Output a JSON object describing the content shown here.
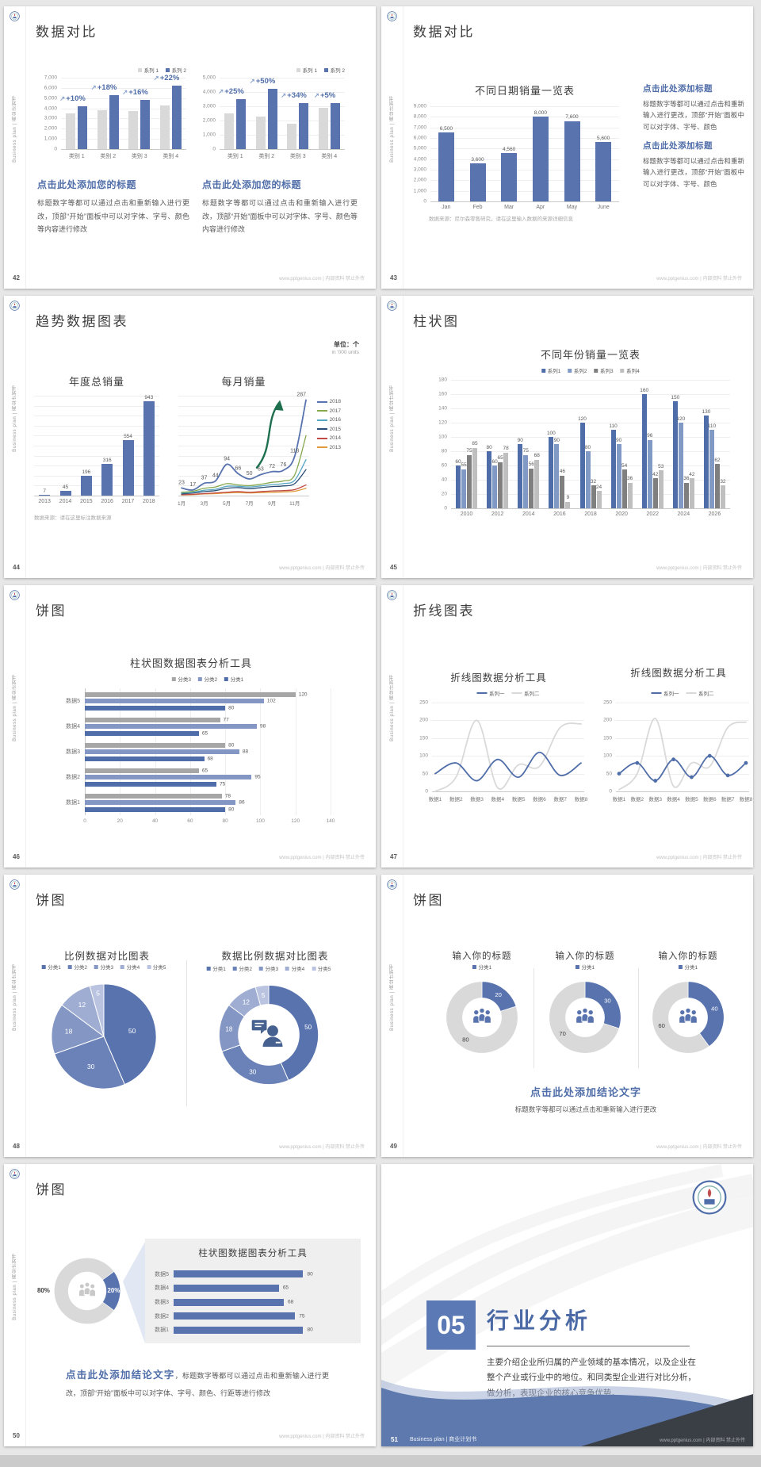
{
  "page": {
    "footer": "www.pptgenius.com | 内部资料 禁止外传",
    "sidebar_text": "Business plan | 商业计划书",
    "accent": "#4f6da8"
  },
  "slides": {
    "s42": {
      "number": "42",
      "title": "数据对比",
      "block1_heading": "点击此处添加您的标题",
      "block1_body": "标题数字等都可以通过点击和重新输入进行更改，顶部“开始”面板中可以对字体、字号、颜色等内容进行修改",
      "block2_heading": "点击此处添加您的标题",
      "block2_body": "标题数字等都可以通过点击和重新输入进行更改，顶部“开始”面板中可以对字体、字号、颜色等内容进行修改"
    },
    "s43": {
      "number": "43",
      "title": "数据对比",
      "chart_title": "不同日期销量一览表",
      "note": "数据来源：尼尔森零售研究，请在这里输入数据的来源详细信息",
      "block1_heading": "点击此处添加标题",
      "block1_body": "标题数字等都可以通过点击和重新输入进行更改，顶部“开始”面板中可以对字体、字号、颜色",
      "block2_heading": "点击此处添加标题",
      "block2_body": "标题数字等都可以通过点击和重新输入进行更改，顶部“开始”面板中可以对字体、字号、颜色"
    },
    "s44": {
      "number": "44",
      "title": "趋势数据图表",
      "left_title": "年度总销量",
      "right_title": "每月销量",
      "unit_cn": "单位：个",
      "unit_en": "in '000 units",
      "note": "数据来源：请在这里标注数据来源"
    },
    "s45": {
      "number": "45",
      "title": "柱状图",
      "chart_title": "不同年份销量一览表"
    },
    "s46": {
      "number": "46",
      "title": "饼图",
      "chart_title": "柱状图数据图表分析工具"
    },
    "s47": {
      "number": "47",
      "title": "折线图表",
      "chart1_title": "折线图数据分析工具",
      "chart2_title": "折线图数据分析工具"
    },
    "s48": {
      "number": "48",
      "title": "饼图",
      "chart1_title": "比例数据对比图表",
      "chart2_title": "数据比例数据对比图表"
    },
    "s49": {
      "number": "49",
      "title": "饼图",
      "t1": "输入你的标题",
      "t2": "输入你的标题",
      "t3": "输入你的标题",
      "conclusion_heading": "点击此处添加结论文字",
      "conclusion_body": "标题数字等都可以通过点击和重新输入进行更改"
    },
    "s50": {
      "number": "50",
      "title": "饼图",
      "panel_title": "柱状图数据图表分析工具",
      "conclusion_heading": "点击此处添加结论文字",
      "conclusion_body": "，标题数字等都可以通过点击和重新输入进行更改，顶部“开始”面板中可以对字体、字号、颜色、行距等进行修改"
    },
    "s51": {
      "number": "51",
      "section_number": "05",
      "section_title": "行业分析",
      "section_body": "主要介绍企业所归属的产业领域的基本情况，以及企业在整个产业或行业中的地位。和同类型企业进行对比分析，做分析，表现企业的核心竞争优势。",
      "bottom_text": "Business plan | 商业计划书"
    }
  },
  "chart_data": {
    "s42_left": {
      "type": "bar",
      "ymax": 7000,
      "yticks": [
        "0",
        "1,000",
        "2,000",
        "3,000",
        "4,000",
        "5,000",
        "6,000",
        "7,000"
      ],
      "categories": [
        "类别 1",
        "类别 2",
        "类别 3",
        "类别 4"
      ],
      "series": [
        {
          "name": "系列 1",
          "color": "#d9d9d9",
          "values": [
            3500,
            3800,
            3700,
            4300
          ]
        },
        {
          "name": "系列 2",
          "color": "#5873ae",
          "values": [
            4200,
            5300,
            4800,
            6200
          ]
        }
      ],
      "annotations": [
        "+10%",
        "+18%",
        "+16%",
        "+22%"
      ],
      "legend": true
    },
    "s42_right": {
      "type": "bar",
      "ymax": 5000,
      "yticks": [
        "0",
        "1,000",
        "2,000",
        "3,000",
        "4,000",
        "5,000"
      ],
      "categories": [
        "类别 1",
        "类别 2",
        "类别 3",
        "类别 4"
      ],
      "series": [
        {
          "name": "系列 1",
          "color": "#d9d9d9",
          "values": [
            2500,
            2300,
            1800,
            2900
          ]
        },
        {
          "name": "系列 2",
          "color": "#5873ae",
          "values": [
            3500,
            4200,
            3200,
            3200
          ]
        }
      ],
      "annotations": [
        "+25%",
        "+50%",
        "+34%",
        "+5%"
      ],
      "legend": true
    },
    "s43": {
      "type": "bar",
      "ymax": 9000,
      "yticks": [
        "0",
        "1,000",
        "2,000",
        "3,000",
        "4,000",
        "5,000",
        "6,000",
        "7,000",
        "8,000",
        "9,000"
      ],
      "categories": [
        "Jan",
        "Feb",
        "Mar",
        "Apr",
        "May",
        "June"
      ],
      "series": [
        {
          "name": "销量",
          "color": "#5873ae",
          "values": [
            6500,
            3600,
            4560,
            8000,
            7600,
            5600
          ],
          "labels": [
            "6,500",
            "3,600",
            "4,560",
            "8,000",
            "7,600",
            "5,600"
          ]
        }
      ]
    },
    "s44_bar": {
      "type": "bar",
      "ymax": 1000,
      "grid": 10,
      "categories": [
        "2013",
        "2014",
        "2015",
        "2016",
        "2017",
        "2018"
      ],
      "series": [
        {
          "name": "年度总销量",
          "color": "#5873ae",
          "values": [
            7,
            45,
            196,
            316,
            554,
            943
          ],
          "labels": [
            "7",
            "45",
            "196",
            "316",
            "554",
            "943"
          ]
        }
      ]
    },
    "s44_line": {
      "type": "line",
      "ymax": 300,
      "grid": 10,
      "categories": [
        "1月",
        "2月",
        "3月",
        "4月",
        "5月",
        "6月",
        "7月",
        "8月",
        "9月",
        "10月",
        "11月",
        "12月"
      ],
      "xshow": [
        "1月",
        "3月",
        "5月",
        "7月",
        "9月",
        "11月"
      ],
      "series": [
        {
          "name": "2018",
          "color": "#5873ae",
          "width": 1.8,
          "values": [
            23,
            17,
            37,
            44,
            94,
            66,
            50,
            63,
            72,
            76,
            118,
            287
          ],
          "labels": [
            "23",
            "17",
            "37",
            "44",
            "94",
            "66",
            "50",
            "63",
            "72",
            "76",
            "118",
            "287"
          ]
        },
        {
          "name": "2017",
          "color": "#86a84f",
          "values": [
            10,
            13,
            22,
            26,
            36,
            32,
            30,
            34,
            40,
            44,
            62,
            180
          ]
        },
        {
          "name": "2016",
          "color": "#56a7c4",
          "values": [
            8,
            10,
            16,
            19,
            28,
            28,
            26,
            29,
            33,
            36,
            46,
            108
          ]
        },
        {
          "name": "2015",
          "color": "#2c4d75",
          "values": [
            5,
            8,
            12,
            15,
            22,
            24,
            21,
            24,
            27,
            29,
            36,
            78
          ]
        },
        {
          "name": "2014",
          "color": "#bf4b44",
          "values": [
            3,
            4,
            6,
            8,
            10,
            12,
            10,
            12,
            14,
            15,
            18,
            32
          ]
        },
        {
          "name": "2013",
          "color": "#e09a3c",
          "values": [
            2,
            3,
            5,
            6,
            8,
            9,
            8,
            9,
            10,
            11,
            13,
            22
          ]
        }
      ],
      "legend_side": true,
      "arrow": true
    },
    "s45": {
      "type": "bar",
      "ymax": 180,
      "yticks": [
        "0",
        "20",
        "40",
        "60",
        "80",
        "100",
        "120",
        "140",
        "160",
        "180"
      ],
      "categories": [
        "2010",
        "2012",
        "2014",
        "2016",
        "2018",
        "2020",
        "2022",
        "2024",
        "2026"
      ],
      "show_values": true,
      "series": [
        {
          "name": "系列1",
          "color": "#4f6da8",
          "values": [
            60,
            80,
            90,
            100,
            120,
            110,
            160,
            150,
            130
          ]
        },
        {
          "name": "系列2",
          "color": "#8199c5",
          "values": [
            55,
            60,
            75,
            90,
            80,
            90,
            96,
            120,
            110
          ]
        },
        {
          "name": "系列3",
          "color": "#7f7f7f",
          "values": [
            75,
            65,
            56,
            46,
            32,
            54,
            42,
            36,
            62
          ]
        },
        {
          "name": "系列4",
          "color": "#bfbfbf",
          "values": [
            85,
            78,
            68,
            9,
            24,
            36,
            53,
            42,
            32
          ]
        }
      ],
      "legend": true
    },
    "s46": {
      "type": "hgroup",
      "xmax": 140,
      "xticks": [
        "0",
        "20",
        "40",
        "60",
        "80",
        "100",
        "120",
        "140"
      ],
      "categories": [
        "数据5",
        "数据4",
        "数据3",
        "数据2",
        "数据1"
      ],
      "series": [
        {
          "name": "分类3",
          "color": "#a6a6a6",
          "values": [
            120,
            77,
            80,
            65,
            78
          ]
        },
        {
          "name": "分类2",
          "color": "#8496c4",
          "values": [
            102,
            98,
            88,
            95,
            86
          ]
        },
        {
          "name": "分类1",
          "color": "#4f6da8",
          "values": [
            80,
            65,
            68,
            75,
            80
          ]
        }
      ],
      "legend": true
    },
    "s47_1": {
      "type": "line",
      "ymax": 250,
      "yticks": [
        "0",
        "50",
        "100",
        "150",
        "200",
        "250"
      ],
      "categories": [
        "数据1",
        "数据2",
        "数据3",
        "数据4",
        "数据5",
        "数据6",
        "数据7",
        "数据8"
      ],
      "series": [
        {
          "name": "系列一",
          "color": "#4f6da8",
          "width": 1.8,
          "values": [
            50,
            80,
            30,
            90,
            40,
            110,
            45,
            80
          ]
        },
        {
          "name": "系列二",
          "color": "#d9d9d9",
          "width": 1.8,
          "values": [
            0,
            40,
            200,
            10,
            75,
            70,
            180,
            190
          ]
        }
      ],
      "legend": true
    },
    "s47_2": {
      "type": "line",
      "ymax": 250,
      "yticks": [
        "0",
        "50",
        "100",
        "150",
        "200",
        "250"
      ],
      "categories": [
        "数据1",
        "数据2",
        "数据3",
        "数据4",
        "数据5",
        "数据6",
        "数据7",
        "数据8"
      ],
      "series": [
        {
          "name": "系列一",
          "color": "#4f6da8",
          "width": 1.8,
          "markers": true,
          "values": [
            50,
            80,
            30,
            90,
            40,
            100,
            45,
            80
          ]
        },
        {
          "name": "系列二",
          "color": "#d9d9d9",
          "width": 1.8,
          "values": [
            5,
            50,
            205,
            15,
            80,
            70,
            180,
            195
          ]
        }
      ],
      "legend": true
    },
    "s48_pie": {
      "type": "pie",
      "names": [
        "分类1",
        "分类2",
        "分类3",
        "分类4",
        "分类5"
      ],
      "values": [
        50,
        30,
        18,
        12,
        5
      ],
      "labels": [
        "50",
        "30",
        "18",
        "12",
        "5"
      ],
      "colors": [
        "#5873ae",
        "#6a82b8",
        "#8496c4",
        "#9fadd2",
        "#bac4e0"
      ],
      "label_r": [
        0.55,
        0.62,
        0.68,
        0.74,
        0.84
      ],
      "label_size": 13,
      "legend": true
    },
    "s48_donut": {
      "type": "pie",
      "names": [
        "分类1",
        "分类2",
        "分类3",
        "分类4",
        "分类5"
      ],
      "values": [
        50,
        30,
        18,
        12,
        5
      ],
      "labels": [
        "50",
        "30",
        "18",
        "12",
        "5"
      ],
      "colors": [
        "#5873ae",
        "#6a82b8",
        "#8496c4",
        "#9fadd2",
        "#bac4e0"
      ],
      "inner": 0.62,
      "icon": "person-chat",
      "label_size": 13,
      "legend": true
    },
    "s49_1": {
      "type": "pie",
      "names": [
        "分类1"
      ],
      "values": [
        20,
        80
      ],
      "labels": [
        "20",
        "80"
      ],
      "colors": [
        "#5873ae",
        "#d9d9d9"
      ],
      "label_colors": [
        "#ffffff",
        "#404040"
      ],
      "inner": 0.55,
      "icon": "people",
      "label_size": 17,
      "legend": true
    },
    "s49_2": {
      "type": "pie",
      "names": [
        "分类1"
      ],
      "values": [
        30,
        70
      ],
      "labels": [
        "30",
        "70"
      ],
      "colors": [
        "#5873ae",
        "#d9d9d9"
      ],
      "label_colors": [
        "#ffffff",
        "#404040"
      ],
      "inner": 0.55,
      "icon": "people",
      "label_size": 17,
      "legend": true
    },
    "s49_3": {
      "type": "pie",
      "names": [
        "分类1"
      ],
      "values": [
        40,
        60
      ],
      "labels": [
        "40",
        "60"
      ],
      "colors": [
        "#5873ae",
        "#d9d9d9"
      ],
      "label_colors": [
        "#ffffff",
        "#404040"
      ],
      "inner": 0.55,
      "icon": "people",
      "label_size": 17,
      "legend": true
    },
    "s50_donut": {
      "type": "pie",
      "values": [
        20,
        80
      ],
      "labels": [
        "20%",
        "80%"
      ],
      "colors": [
        "#5873ae",
        "#d9d9d9"
      ],
      "label_colors": [
        "#ffffff",
        "#3d3d3d"
      ],
      "label_r": [
        0.8,
        1.32
      ],
      "label_size": 19,
      "bold": true,
      "inner": 0.58,
      "icon": "people-gray",
      "start": 54
    },
    "s50_bars": {
      "type": "hbar",
      "xmax": 92,
      "categories": [
        "数据5",
        "数据4",
        "数据3",
        "数据2",
        "数据1"
      ],
      "values": [
        80,
        65,
        68,
        75,
        80
      ],
      "color": "#5873ae"
    }
  }
}
